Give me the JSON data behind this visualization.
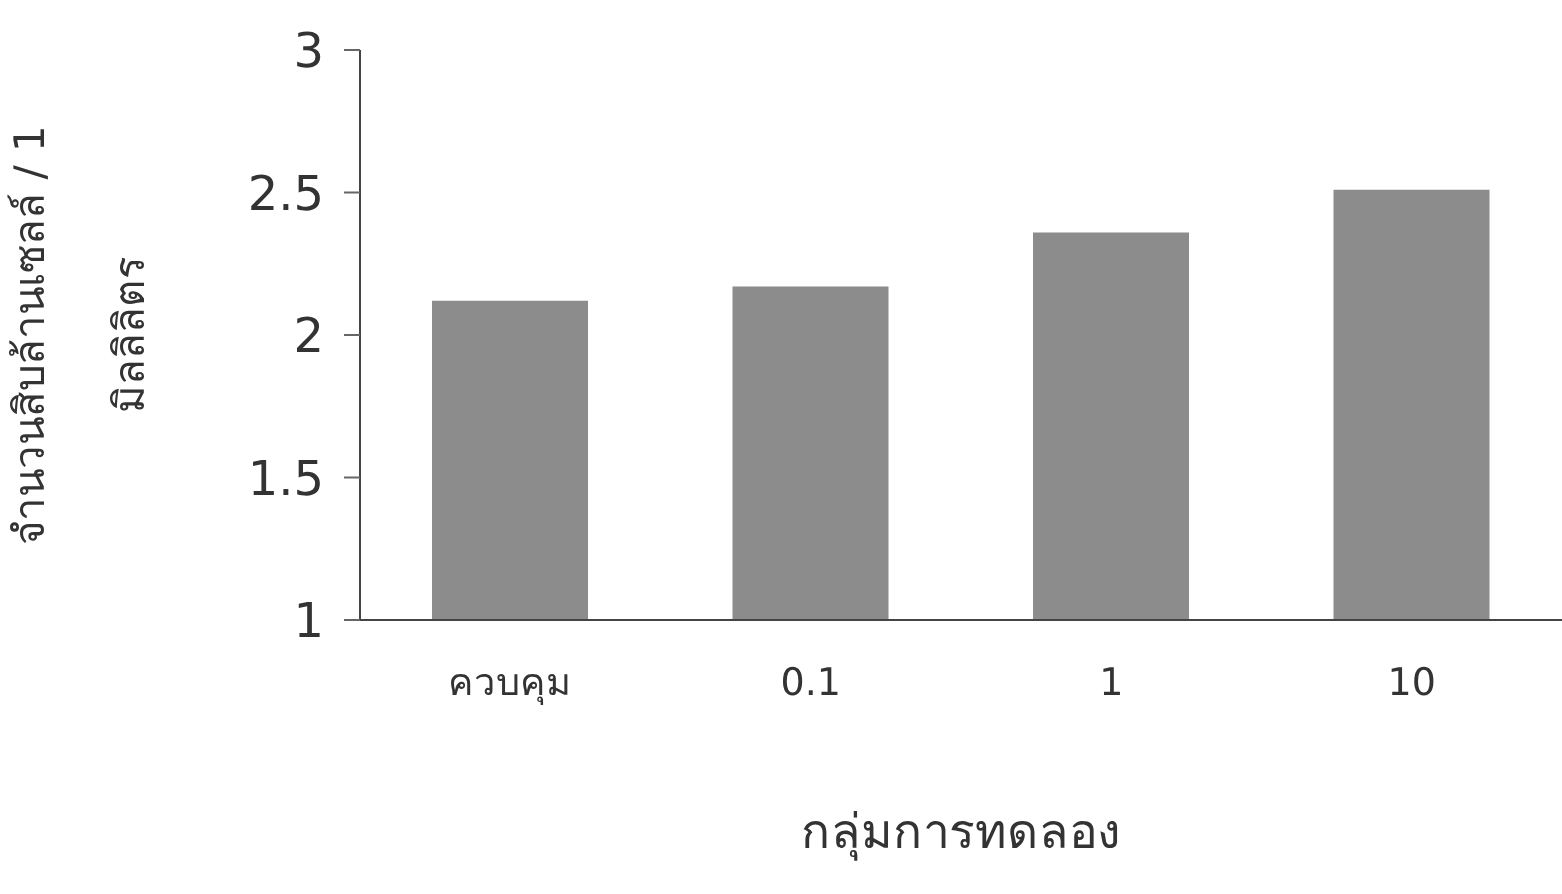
{
  "chart_data": {
    "type": "bar",
    "xlabel": "กลุ่มการทดลอง",
    "ylabel": "จำนวนสิบล้านเซลล์ / 1 มิลลิลิตร",
    "categories": [
      "ควบคุม",
      "0.1",
      "1",
      "10"
    ],
    "values": [
      2.12,
      2.17,
      2.36,
      2.51
    ],
    "color": "#8c8c8c",
    "ylim": [
      1,
      3
    ],
    "yticks": [
      1,
      1.5,
      2,
      2.5,
      3
    ],
    "grid": false
  }
}
